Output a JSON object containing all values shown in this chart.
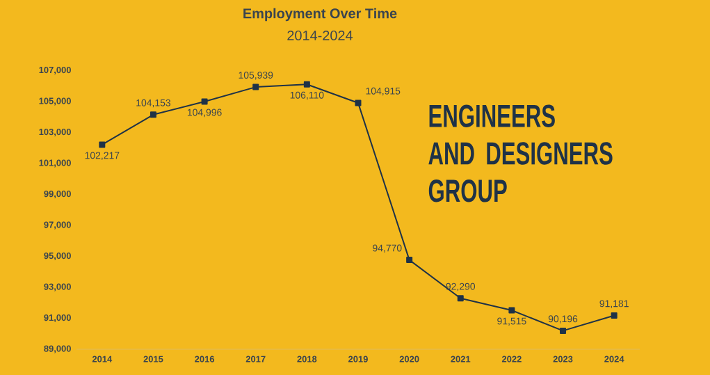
{
  "chart_data": {
    "type": "line",
    "title": "Employment Over Time",
    "subtitle": "2014-2024",
    "categories": [
      "2014",
      "2015",
      "2016",
      "2017",
      "2018",
      "2019",
      "2020",
      "2021",
      "2022",
      "2023",
      "2024"
    ],
    "values": [
      102217,
      104153,
      104996,
      105939,
      106110,
      104915,
      94770,
      92290,
      91515,
      90196,
      91181
    ],
    "value_labels": [
      "102,217",
      "104,153",
      "104,996",
      "105,939",
      "106,110",
      "104,915",
      "94,770",
      "92,290",
      "91,515",
      "90,196",
      "91,181"
    ],
    "color": "#1f3247",
    "marker": "square",
    "line_style": "solid",
    "grid": false,
    "ylim": [
      89000,
      107000
    ],
    "yticks": [
      {
        "value": 89000,
        "label": "89,000"
      },
      {
        "value": 91000,
        "label": "91,000"
      },
      {
        "value": 93000,
        "label": "93,000"
      },
      {
        "value": 95000,
        "label": "95,000"
      },
      {
        "value": 97000,
        "label": "97,000"
      },
      {
        "value": 99000,
        "label": "99,000"
      },
      {
        "value": 101000,
        "label": "101,000"
      },
      {
        "value": 103000,
        "label": "103,000"
      },
      {
        "value": 105000,
        "label": "105,000"
      },
      {
        "value": 107000,
        "label": "107,000"
      }
    ],
    "annotations": [
      "ENGINEERS AND DESIGNERS GROUP"
    ]
  }
}
